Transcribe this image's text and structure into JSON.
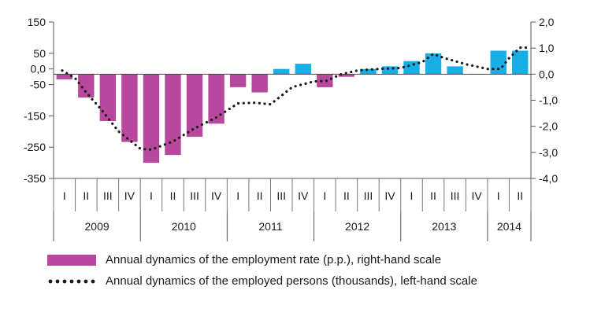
{
  "chart_data": {
    "type": "bar",
    "title": "",
    "quarter_labels": [
      "I",
      "II",
      "III",
      "IV",
      "I",
      "II",
      "III",
      "IV",
      "I",
      "II",
      "III",
      "IV",
      "I",
      "II",
      "III",
      "IV",
      "I",
      "II",
      "III",
      "IV",
      "I",
      "II"
    ],
    "years": [
      {
        "label": "2009",
        "quarters": 4
      },
      {
        "label": "2010",
        "quarters": 4
      },
      {
        "label": "2011",
        "quarters": 4
      },
      {
        "label": "2012",
        "quarters": 4
      },
      {
        "label": "2013",
        "quarters": 4
      },
      {
        "label": "2014",
        "quarters": 2
      }
    ],
    "left_axis": {
      "min": -350,
      "max": 150,
      "ticks": [
        150,
        50,
        0,
        -50,
        -150,
        -250,
        -350
      ],
      "tick_labels": [
        "150",
        "50",
        "0,0",
        "-50",
        "-150",
        "-250",
        "-350"
      ]
    },
    "right_axis": {
      "min": -4.0,
      "max": 2.0,
      "ticks": [
        2.0,
        1.0,
        0.0,
        -1.0,
        -2.0,
        -3.0,
        -4.0
      ],
      "tick_labels": [
        "2,0",
        "1,0",
        "0,0",
        "-1,0",
        "-2,0",
        "-3,0",
        "-4,0"
      ]
    },
    "series": [
      {
        "name": "Annual dynamics of the employment rate (p.p.), right-hand scale",
        "kind": "bar",
        "axis": "right",
        "color_negative": "#b8479e",
        "color_positive": "#18aee6",
        "values": [
          -0.2,
          -0.9,
          -1.8,
          -2.6,
          -3.4,
          -3.1,
          -2.4,
          -1.9,
          -0.5,
          -0.7,
          0.2,
          0.4,
          -0.5,
          -0.1,
          0.2,
          0.3,
          0.5,
          0.8,
          0.3,
          0.0,
          0.9,
          0.9
        ]
      },
      {
        "name": "Annual dynamics of the employed persons (thousands), left-hand scale",
        "kind": "dotted-line",
        "axis": "left",
        "color": "#1a1a1a",
        "points": [
          [
            0.4,
            -5
          ],
          [
            1.0,
            -30
          ],
          [
            1.5,
            -75
          ],
          [
            2.2,
            -130
          ],
          [
            3.0,
            -200
          ],
          [
            4.0,
            -255
          ],
          [
            4.5,
            -258
          ],
          [
            5.5,
            -232
          ],
          [
            6.5,
            -190
          ],
          [
            7.5,
            -155
          ],
          [
            8.5,
            -110
          ],
          [
            9.3,
            -108
          ],
          [
            10.0,
            -113
          ],
          [
            11.0,
            -58
          ],
          [
            12.0,
            -40
          ],
          [
            12.6,
            -38
          ],
          [
            13.2,
            -18
          ],
          [
            14.0,
            -5
          ],
          [
            15.0,
            0
          ],
          [
            16.0,
            3
          ],
          [
            17.0,
            22
          ],
          [
            17.5,
            48
          ],
          [
            18.0,
            35
          ],
          [
            19.0,
            15
          ],
          [
            20.0,
            0
          ],
          [
            20.6,
            0
          ],
          [
            21.0,
            35
          ],
          [
            21.5,
            68
          ],
          [
            22.0,
            68
          ]
        ]
      }
    ],
    "grid": false,
    "legend_position": "bottom"
  }
}
